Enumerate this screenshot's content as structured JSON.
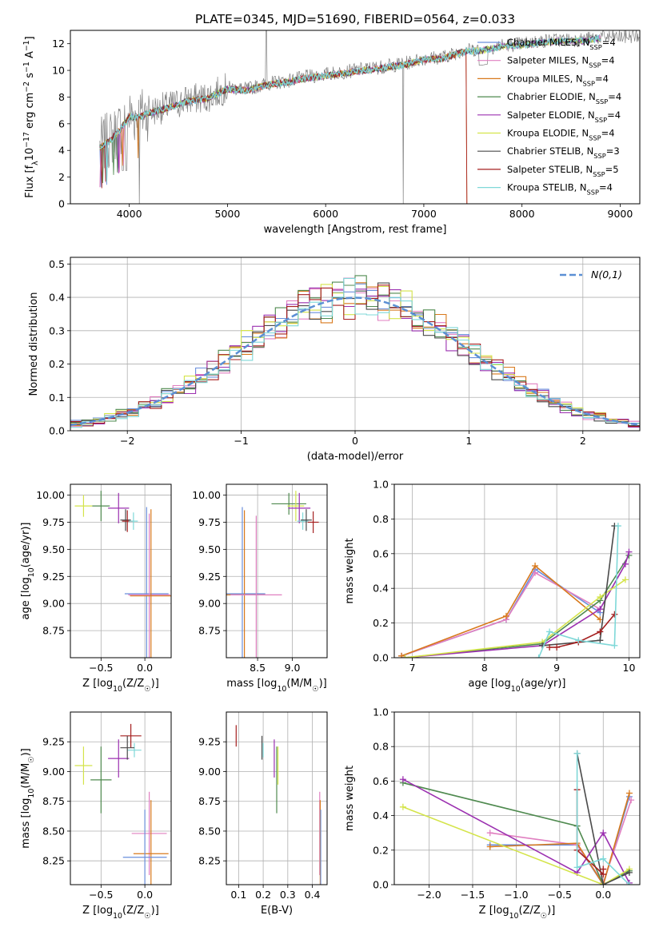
{
  "figure_title": "PLATE=0345, MJD=51690, FIBERID=0564, z=0.033",
  "colors": {
    "Chabrier MILES": "#6a8fdc",
    "Salpeter MILES": "#e07fc0",
    "Kroupa MILES": "#d8791c",
    "Chabrier ELODIE": "#4f8a4f",
    "Salpeter ELODIE": "#9b30b0",
    "Kroupa ELODIE": "#d4e44a",
    "Chabrier STELIB": "#4a4a4a",
    "Salpeter STELIB": "#a51f1f",
    "Kroupa STELIB": "#7fd8d8",
    "data": "#808080",
    "normal": "#5b8fd4"
  },
  "chart_data": [
    {
      "type": "line",
      "panel": "spectrum",
      "xlabel": "wavelength [Angstrom, rest frame]",
      "ylabel": "Flux [f_λ10^-17 erg cm^-2 s^-1 A^-1]",
      "xlim": [
        3400,
        9200
      ],
      "ylim": [
        0,
        13
      ],
      "xticks": [
        4000,
        5000,
        6000,
        7000,
        8000,
        9000
      ],
      "yticks": [
        0,
        2,
        4,
        6,
        8,
        10,
        12
      ],
      "grid": false,
      "legend_position": "upper right",
      "legend": [
        {
          "label": "Chabrier MILES, N_SSP=4",
          "base": "Chabrier MILES, N",
          "sub": "SSP",
          "tail": "=4"
        },
        {
          "label": "Salpeter MILES, N_SSP=4",
          "base": "Salpeter MILES, N",
          "sub": "SSP",
          "tail": "=4"
        },
        {
          "label": "Kroupa MILES, N_SSP=4",
          "base": "Kroupa MILES, N",
          "sub": "SSP",
          "tail": "=4"
        },
        {
          "label": "Chabrier ELODIE, N_SSP=4",
          "base": "Chabrier ELODIE, N",
          "sub": "SSP",
          "tail": "=4"
        },
        {
          "label": "Salpeter ELODIE, N_SSP=4",
          "base": "Salpeter ELODIE, N",
          "sub": "SSP",
          "tail": "=4"
        },
        {
          "label": "Kroupa ELODIE, N_SSP=4",
          "base": "Kroupa ELODIE, N",
          "sub": "SSP",
          "tail": "=4"
        },
        {
          "label": "Chabrier STELIB, N_SSP=3",
          "base": "Chabrier STELIB, N",
          "sub": "SSP",
          "tail": "=3"
        },
        {
          "label": "Salpeter STELIB, N_SSP=5",
          "base": "Salpeter STELIB, N",
          "sub": "SSP",
          "tail": "=5"
        },
        {
          "label": "Kroupa STELIB, N_SSP=4",
          "base": "Kroupa STELIB, N",
          "sub": "SSP",
          "tail": "=4"
        }
      ],
      "continuum": [
        [
          3700,
          4.3
        ],
        [
          3800,
          4.8
        ],
        [
          3900,
          5.6
        ],
        [
          4000,
          6.6
        ],
        [
          4100,
          6.6
        ],
        [
          4200,
          6.9
        ],
        [
          4400,
          7.3
        ],
        [
          4600,
          7.8
        ],
        [
          4800,
          8.0
        ],
        [
          5000,
          8.7
        ],
        [
          5200,
          8.6
        ],
        [
          5400,
          9.0
        ],
        [
          5600,
          9.2
        ],
        [
          5800,
          9.5
        ],
        [
          6000,
          9.7
        ],
        [
          6200,
          9.9
        ],
        [
          6400,
          10.1
        ],
        [
          6600,
          10.3
        ],
        [
          6800,
          10.5
        ],
        [
          7000,
          10.9
        ],
        [
          7200,
          11.0
        ],
        [
          7400,
          11.5
        ],
        [
          7600,
          11.6
        ],
        [
          7800,
          11.9
        ],
        [
          8000,
          12.0
        ],
        [
          8200,
          12.2
        ],
        [
          8400,
          12.3
        ],
        [
          8600,
          12.3
        ],
        [
          8800,
          12.5
        ],
        [
          9000,
          12.5
        ],
        [
          9200,
          12.6
        ]
      ],
      "model_range": [
        3700,
        8800
      ],
      "model_cutoffs": {
        "Salpeter STELIB": 7430,
        "Kroupa MILES": 7430
      }
    },
    {
      "type": "step",
      "panel": "residuals",
      "xlabel": "(data-model)/error",
      "ylabel": "Normed distribution",
      "xlim": [
        -2.5,
        2.5
      ],
      "ylim": [
        0,
        0.52
      ],
      "xticks": [
        -2,
        -1,
        0,
        1,
        2
      ],
      "yticks": [
        0.0,
        0.1,
        0.2,
        0.3,
        0.4,
        0.5
      ],
      "grid": true,
      "legend_position": "upper right",
      "legend": [
        {
          "label": "N(0,1)"
        }
      ],
      "bin_width": 0.1,
      "bin_start": -2.5
    },
    {
      "type": "scatter",
      "panel": "age_vs_Z",
      "xlabel": "Z [log10(Z/Z☉)]",
      "ylabel": "age [log10(age/yr)]",
      "xlim": [
        -0.85,
        0.3
      ],
      "ylim": [
        8.5,
        10.1
      ],
      "xticks": [
        -0.5,
        0.0
      ],
      "yticks": [
        8.75,
        9.0,
        9.25,
        9.5,
        9.75,
        10.0
      ],
      "grid": true,
      "points": [
        {
          "series": "Kroupa ELODIE",
          "x": -0.7,
          "y": 9.9,
          "xerr": 0.1,
          "yerr": 0.1
        },
        {
          "series": "Chabrier ELODIE",
          "x": -0.5,
          "y": 9.9,
          "xerr": 0.1,
          "yerr": 0.14
        },
        {
          "series": "Salpeter ELODIE",
          "x": -0.3,
          "y": 9.88,
          "xerr": 0.12,
          "yerr": 0.14
        },
        {
          "series": "Chabrier STELIB",
          "x": -0.22,
          "y": 9.77,
          "xerr": 0.06,
          "yerr": 0.1
        },
        {
          "series": "Salpeter STELIB",
          "x": -0.2,
          "y": 9.76,
          "xerr": 0.06,
          "yerr": 0.1
        },
        {
          "series": "Kroupa STELIB",
          "x": -0.13,
          "y": 9.76,
          "xerr": 0.05,
          "yerr": 0.08
        },
        {
          "series": "Chabrier MILES",
          "x": 0.02,
          "y": 9.09,
          "xerr": 0.25,
          "yerr": 0.8
        },
        {
          "series": "Salpeter MILES",
          "x": 0.05,
          "y": 9.08,
          "xerr": 0.24,
          "yerr": 0.75
        },
        {
          "series": "Kroupa MILES",
          "x": 0.07,
          "y": 9.07,
          "xerr": 0.24,
          "yerr": 0.8
        }
      ]
    },
    {
      "type": "scatter",
      "panel": "age_vs_mass",
      "xlabel": "mass [log10(M/M☉)]",
      "ylabel": "",
      "xlim": [
        8.05,
        9.5
      ],
      "ylim": [
        8.5,
        10.1
      ],
      "xticks": [
        8.5,
        9.0
      ],
      "yticks": [
        8.75,
        9.0,
        9.25,
        9.5,
        9.75,
        10.0
      ],
      "grid": true,
      "points": [
        {
          "series": "Chabrier MILES",
          "x": 8.28,
          "y": 9.09,
          "xerr": 0.33,
          "yerr": 0.8
        },
        {
          "series": "Kroupa MILES",
          "x": 8.31,
          "y": 9.08,
          "xerr": 0.3,
          "yerr": 0.78
        },
        {
          "series": "Salpeter MILES",
          "x": 8.48,
          "y": 9.08,
          "xerr": 0.37,
          "yerr": 0.73
        },
        {
          "series": "Chabrier ELODIE",
          "x": 8.95,
          "y": 9.92,
          "xerr": 0.25,
          "yerr": 0.1
        },
        {
          "series": "Kroupa ELODIE",
          "x": 9.05,
          "y": 9.9,
          "xerr": 0.12,
          "yerr": 0.14
        },
        {
          "series": "Salpeter ELODIE",
          "x": 9.1,
          "y": 9.88,
          "xerr": 0.16,
          "yerr": 0.14
        },
        {
          "series": "Kroupa STELIB",
          "x": 9.15,
          "y": 9.76,
          "xerr": 0.08,
          "yerr": 0.08
        },
        {
          "series": "Chabrier STELIB",
          "x": 9.2,
          "y": 9.77,
          "xerr": 0.08,
          "yerr": 0.1
        },
        {
          "series": "Salpeter STELIB",
          "x": 9.3,
          "y": 9.75,
          "xerr": 0.08,
          "yerr": 0.1
        }
      ]
    },
    {
      "type": "line",
      "panel": "mass_weight_vs_age",
      "xlabel": "age [log10(age/yr)]",
      "ylabel": "mass weight",
      "xlim": [
        6.75,
        10.15
      ],
      "ylim": [
        0.0,
        1.0
      ],
      "xticks": [
        7,
        8,
        9,
        10
      ],
      "yticks": [
        0.0,
        0.2,
        0.4,
        0.6,
        0.8,
        1.0
      ],
      "grid": true,
      "series": [
        {
          "name": "Chabrier MILES",
          "points": [
            [
              6.85,
              0.01
            ],
            [
              8.3,
              0.22
            ],
            [
              8.7,
              0.51
            ],
            [
              9.6,
              0.26
            ]
          ]
        },
        {
          "name": "Salpeter MILES",
          "points": [
            [
              6.85,
              0.01
            ],
            [
              8.3,
              0.22
            ],
            [
              8.7,
              0.49
            ],
            [
              9.6,
              0.28
            ]
          ]
        },
        {
          "name": "Kroupa MILES",
          "points": [
            [
              6.85,
              0.01
            ],
            [
              8.3,
              0.24
            ],
            [
              8.7,
              0.53
            ],
            [
              9.6,
              0.22
            ]
          ]
        },
        {
          "name": "Chabrier ELODIE",
          "points": [
            [
              6.9,
              0.0
            ],
            [
              8.8,
              0.08
            ],
            [
              9.6,
              0.33
            ],
            [
              10.0,
              0.59
            ]
          ]
        },
        {
          "name": "Salpeter ELODIE",
          "points": [
            [
              6.9,
              0.0
            ],
            [
              8.8,
              0.07
            ],
            [
              9.6,
              0.28
            ],
            [
              9.95,
              0.54
            ],
            [
              10.0,
              0.61
            ]
          ]
        },
        {
          "name": "Kroupa ELODIE",
          "points": [
            [
              6.9,
              0.0
            ],
            [
              8.8,
              0.09
            ],
            [
              9.6,
              0.35
            ],
            [
              9.95,
              0.45
            ]
          ]
        },
        {
          "name": "Chabrier STELIB",
          "points": [
            [
              8.8,
              0.07
            ],
            [
              9.6,
              0.1
            ],
            [
              9.8,
              0.76
            ]
          ]
        },
        {
          "name": "Salpeter STELIB",
          "points": [
            [
              8.9,
              0.06
            ],
            [
              9.0,
              0.06
            ],
            [
              9.3,
              0.09
            ],
            [
              9.6,
              0.15
            ],
            [
              9.8,
              0.25
            ]
          ]
        },
        {
          "name": "Kroupa STELIB",
          "points": [
            [
              8.75,
              0.0
            ],
            [
              8.9,
              0.15
            ],
            [
              9.3,
              0.1
            ],
            [
              9.8,
              0.07
            ],
            [
              9.85,
              0.76
            ]
          ]
        }
      ]
    },
    {
      "type": "scatter",
      "panel": "mass_vs_Z",
      "xlabel": "Z [log10(Z/Z☉)]",
      "ylabel": "mass [log10(M/M☉)]",
      "xlim": [
        -0.85,
        0.3
      ],
      "ylim": [
        8.05,
        9.5
      ],
      "xticks": [
        -0.5,
        0.0
      ],
      "yticks": [
        8.25,
        8.5,
        8.75,
        9.0,
        9.25
      ],
      "grid": true,
      "points": [
        {
          "series": "Kroupa ELODIE",
          "x": -0.7,
          "y": 9.05,
          "xerr": 0.1,
          "yerr": 0.16
        },
        {
          "series": "Chabrier ELODIE",
          "x": -0.5,
          "y": 8.93,
          "xerr": 0.12,
          "yerr": 0.28
        },
        {
          "series": "Salpeter ELODIE",
          "x": -0.3,
          "y": 9.11,
          "xerr": 0.12,
          "yerr": 0.16
        },
        {
          "series": "Salpeter STELIB",
          "x": -0.16,
          "y": 9.3,
          "xerr": 0.12,
          "yerr": 0.1
        },
        {
          "series": "Kroupa STELIB",
          "x": -0.12,
          "y": 9.18,
          "xerr": 0.08,
          "yerr": 0.06
        },
        {
          "series": "Chabrier STELIB",
          "x": -0.2,
          "y": 9.2,
          "xerr": 0.08,
          "yerr": 0.1
        },
        {
          "series": "Salpeter MILES",
          "x": 0.05,
          "y": 8.48,
          "xerr": 0.2,
          "yerr": 0.35
        },
        {
          "series": "Kroupa MILES",
          "x": 0.07,
          "y": 8.31,
          "xerr": 0.2,
          "yerr": 0.45
        },
        {
          "series": "Chabrier MILES",
          "x": 0.0,
          "y": 8.28,
          "xerr": 0.25,
          "yerr": 0.4
        }
      ]
    },
    {
      "type": "scatter",
      "panel": "mass_vs_EBV",
      "xlabel": "E(B-V)",
      "ylabel": "",
      "xlim": [
        0.05,
        0.46
      ],
      "ylim": [
        8.05,
        9.5
      ],
      "xticks": [
        0.1,
        0.2,
        0.3,
        0.4
      ],
      "yticks": [
        8.25,
        8.5,
        8.75,
        9.0,
        9.25
      ],
      "grid": true,
      "points": [
        {
          "series": "Salpeter STELIB",
          "x": 0.09,
          "y": 9.3,
          "xerr": 0.0,
          "yerr": 0.09
        },
        {
          "series": "Chabrier STELIB",
          "x": 0.195,
          "y": 9.2,
          "xerr": 0.0,
          "yerr": 0.1
        },
        {
          "series": "Kroupa STELIB",
          "x": 0.2,
          "y": 9.18,
          "xerr": 0.0,
          "yerr": 0.06
        },
        {
          "series": "Salpeter ELODIE",
          "x": 0.245,
          "y": 9.11,
          "xerr": 0.0,
          "yerr": 0.16
        },
        {
          "series": "Chabrier ELODIE",
          "x": 0.255,
          "y": 8.93,
          "xerr": 0.0,
          "yerr": 0.28
        },
        {
          "series": "Kroupa ELODIE",
          "x": 0.26,
          "y": 9.05,
          "xerr": 0.0,
          "yerr": 0.16
        },
        {
          "series": "Salpeter MILES",
          "x": 0.43,
          "y": 8.48,
          "xerr": 0.0,
          "yerr": 0.35
        },
        {
          "series": "Kroupa MILES",
          "x": 0.432,
          "y": 8.31,
          "xerr": 0.0,
          "yerr": 0.45
        },
        {
          "series": "Chabrier MILES",
          "x": 0.434,
          "y": 8.28,
          "xerr": 0.0,
          "yerr": 0.4
        }
      ]
    },
    {
      "type": "line",
      "panel": "mass_weight_vs_Z",
      "xlabel": "Z [log10(Z/Z☉)]",
      "ylabel": "mass weight",
      "xlim": [
        -2.4,
        0.42
      ],
      "ylim": [
        0.0,
        1.0
      ],
      "xticks": [
        -2.0,
        -1.5,
        -1.0,
        -0.5,
        0.0
      ],
      "yticks": [
        0.0,
        0.2,
        0.4,
        0.6,
        0.8,
        1.0
      ],
      "grid": true,
      "series": [
        {
          "name": "Chabrier MILES",
          "points": [
            [
              -1.3,
              0.23
            ],
            [
              -0.3,
              0.23
            ],
            [
              0.0,
              0.0
            ],
            [
              0.3,
              0.51
            ]
          ]
        },
        {
          "name": "Salpeter MILES",
          "points": [
            [
              -1.3,
              0.3
            ],
            [
              -0.3,
              0.23
            ],
            [
              0.0,
              0.01
            ],
            [
              0.32,
              0.49
            ]
          ]
        },
        {
          "name": "Kroupa MILES",
          "points": [
            [
              -1.3,
              0.22
            ],
            [
              -0.3,
              0.24
            ],
            [
              0.0,
              0.0
            ],
            [
              0.3,
              0.53
            ]
          ]
        },
        {
          "name": "Chabrier ELODIE",
          "points": [
            [
              -2.3,
              0.59
            ],
            [
              -0.3,
              0.34
            ],
            [
              0.0,
              0.0
            ],
            [
              0.3,
              0.08
            ]
          ]
        },
        {
          "name": "Salpeter ELODIE",
          "points": [
            [
              -2.3,
              0.61
            ],
            [
              -0.3,
              0.07
            ],
            [
              0.0,
              0.3
            ],
            [
              0.3,
              0.01
            ]
          ]
        },
        {
          "name": "Kroupa ELODIE",
          "points": [
            [
              -2.3,
              0.45
            ],
            [
              0.0,
              0.0
            ],
            [
              0.3,
              0.09
            ]
          ]
        },
        {
          "name": "Chabrier STELIB",
          "points": [
            [
              -0.3,
              0.76
            ],
            [
              0.0,
              0.0
            ],
            [
              0.3,
              0.07
            ]
          ]
        },
        {
          "name": "Salpeter STELIB",
          "points": [
            [
              -0.3,
              0.55
            ],
            [
              -0.3,
              0.2
            ],
            [
              0.0,
              0.06
            ],
            [
              0.0,
              0.09
            ]
          ]
        },
        {
          "name": "Kroupa STELIB",
          "points": [
            [
              -0.3,
              0.76
            ],
            [
              -0.3,
              0.1
            ],
            [
              0.0,
              0.15
            ],
            [
              0.3,
              0.0
            ]
          ]
        }
      ]
    }
  ]
}
